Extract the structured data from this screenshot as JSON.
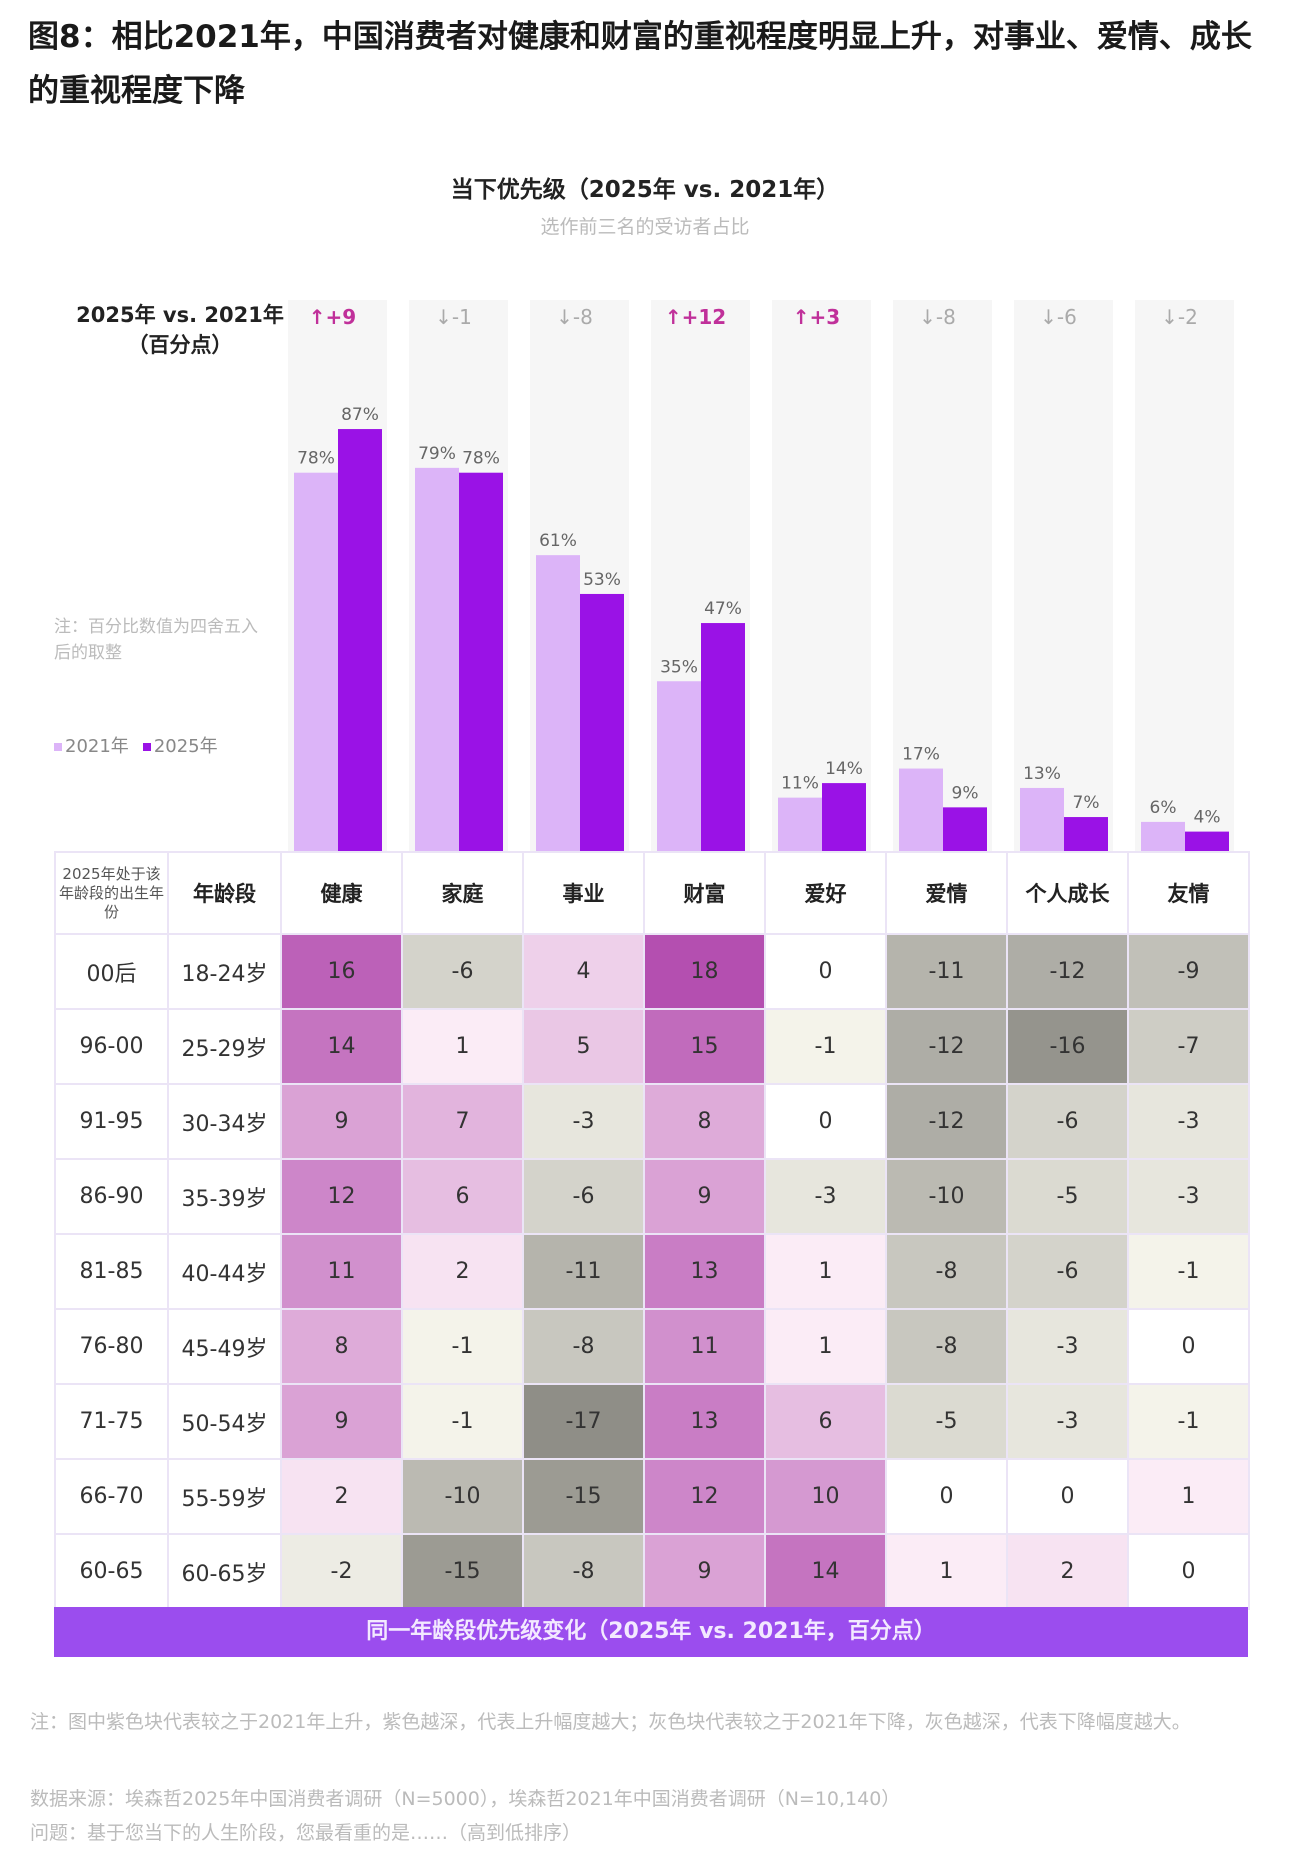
{
  "figure_title": "图8：相比2021年，中国消费者对健康和财富的重视程度明显上升，对事业、爱情、成长的重视程度下降",
  "colors": {
    "y2021": "#dcb4f8",
    "y2025": "#9a12e6",
    "up": "#c0309a",
    "down": "#aaaaaa",
    "heat_pos": "#b44fb0",
    "heat_neg": "#8f8e87",
    "footer": "#9b4dee"
  },
  "chart_data": [
    {
      "type": "bar",
      "title": "当下优先级（2025年 vs. 2021年）",
      "subtitle": "选作前三名的受访者占比",
      "categories": [
        "健康",
        "家庭",
        "事业",
        "财富",
        "爱好",
        "爱情",
        "个人成长",
        "友情"
      ],
      "series": [
        {
          "name": "2021年",
          "values": [
            78,
            79,
            61,
            35,
            11,
            17,
            13,
            6
          ]
        },
        {
          "name": "2025年",
          "values": [
            87,
            78,
            53,
            47,
            14,
            9,
            7,
            4
          ]
        }
      ],
      "value_labels": [
        [
          "78%",
          "79%",
          "61%",
          "35%",
          "11%",
          "17%",
          "13%",
          "6%"
        ],
        [
          "87%",
          "78%",
          "53%",
          "47%",
          "14%",
          "9%",
          "7%",
          "4%"
        ]
      ],
      "delta_label": "2025年 vs. 2021年",
      "delta_unit": "（百分点）",
      "deltas": [
        "+9",
        "-1",
        "-8",
        "+12",
        "+3",
        "-8",
        "-6",
        "-2"
      ],
      "note": "注：百分比数值为四舍五入后的取整",
      "legend": [
        "2021年",
        "2025年"
      ],
      "legend_position": "left",
      "ylim": [
        0,
        100
      ]
    },
    {
      "type": "heatmap",
      "title": "同一年龄段优先级变化（2025年 vs. 2021年，百分点）",
      "header_birth": "2025年处于该年龄段的出生年份",
      "header_age": "年龄段",
      "columns": [
        "健康",
        "家庭",
        "事业",
        "财富",
        "爱好",
        "爱情",
        "个人成长",
        "友情"
      ],
      "rows": [
        {
          "birth": "00后",
          "age": "18-24岁",
          "values": [
            16,
            -6,
            4,
            18,
            0,
            -11,
            -12,
            -9
          ]
        },
        {
          "birth": "96-00",
          "age": "25-29岁",
          "values": [
            14,
            1,
            5,
            15,
            -1,
            -12,
            -16,
            -7
          ]
        },
        {
          "birth": "91-95",
          "age": "30-34岁",
          "values": [
            9,
            7,
            -3,
            8,
            0,
            -12,
            -6,
            -3
          ]
        },
        {
          "birth": "86-90",
          "age": "35-39岁",
          "values": [
            12,
            6,
            -6,
            9,
            -3,
            -10,
            -5,
            -3
          ]
        },
        {
          "birth": "81-85",
          "age": "40-44岁",
          "values": [
            11,
            2,
            -11,
            13,
            1,
            -8,
            -6,
            -1
          ]
        },
        {
          "birth": "76-80",
          "age": "45-49岁",
          "values": [
            8,
            -1,
            -8,
            11,
            1,
            -8,
            -3,
            0
          ]
        },
        {
          "birth": "71-75",
          "age": "50-54岁",
          "values": [
            9,
            -1,
            -17,
            13,
            6,
            -5,
            -3,
            -1
          ]
        },
        {
          "birth": "66-70",
          "age": "55-59岁",
          "values": [
            2,
            -10,
            -15,
            12,
            10,
            0,
            0,
            1
          ]
        },
        {
          "birth": "60-65",
          "age": "60-65岁",
          "values": [
            -2,
            -15,
            -8,
            9,
            14,
            1,
            2,
            0
          ]
        }
      ]
    }
  ],
  "footnotes": {
    "note": "注：图中紫色块代表较之于2021年上升，紫色越深，代表上升幅度越大；灰色块代表较之于2021年下降，灰色越深，代表下降幅度越大。",
    "source": "数据来源：埃森哲2025年中国消费者调研（N=5000），埃森哲2021年中国消费者调研（N=10,140）",
    "question": "问题：基于您当下的人生阶段，您最看重的是……（高到低排序）"
  }
}
